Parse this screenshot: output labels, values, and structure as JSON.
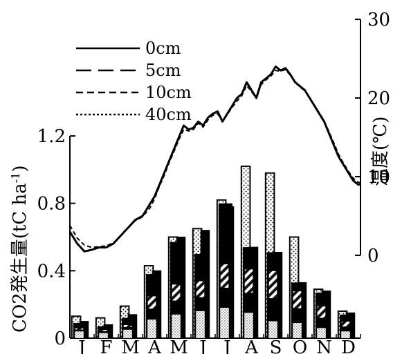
{
  "chart_data": {
    "type": "bar",
    "categories": [
      "J",
      "F",
      "M",
      "A",
      "M",
      "J",
      "J",
      "A",
      "S",
      "O",
      "N",
      "D"
    ],
    "ylabel": "CO2発生量(tC ha-1)",
    "ylabel_main": "CO2発生量(tC ha",
    "ylabel_sup": "-1",
    "ylabel_close": ")",
    "y2label": "温度(℃)",
    "ylim": [
      0,
      1.2
    ],
    "y2lim": [
      0,
      30
    ],
    "yticks": [
      "0",
      "0.4",
      "0.8",
      "1.2"
    ],
    "y2ticks": [
      "0",
      "10",
      "20",
      "30"
    ],
    "bar_series": [
      {
        "name": "left",
        "values": [
          0.13,
          0.12,
          0.19,
          0.43,
          0.6,
          0.65,
          0.82,
          1.02,
          0.98,
          0.6,
          0.29,
          0.16
        ]
      },
      {
        "name": "right",
        "values": [
          0.1,
          0.08,
          0.14,
          0.4,
          0.6,
          0.64,
          0.78,
          0.54,
          0.51,
          0.33,
          0.28,
          0.15
        ]
      }
    ],
    "bar_layers": [
      {
        "name": "left-black-top",
        "values": [
          0.09,
          0.07,
          0.12,
          0.38,
          0.57,
          0.5,
          0.8,
          0.54,
          0.51,
          0.33,
          0.27,
          0.14
        ]
      },
      {
        "name": "hatched",
        "values": [
          0.06,
          0.05,
          0.08,
          0.25,
          0.32,
          0.34,
          0.44,
          0.41,
          0.4,
          0.28,
          0.19,
          0.1
        ]
      },
      {
        "name": "dotted-grey",
        "values": [
          0.04,
          0.03,
          0.05,
          0.11,
          0.14,
          0.16,
          0.18,
          0.15,
          0.1,
          0.09,
          0.06,
          0.04
        ]
      }
    ],
    "legend": [
      "0cm",
      "5cm",
      "10cm",
      "40cm"
    ],
    "legend_styles": [
      "solid",
      "long-dash",
      "short-dash",
      "dotted"
    ],
    "temperature_series": {
      "name": "0cm",
      "x": [
        0,
        0.3,
        0.6,
        0.9,
        1.2,
        1.5,
        1.8,
        2.1,
        2.4,
        2.7,
        3.0,
        3.3,
        3.5,
        3.7,
        3.9,
        4.1,
        4.3,
        4.5,
        4.7,
        4.9,
        5.1,
        5.3,
        5.5,
        5.7,
        5.9,
        6.1,
        6.3,
        6.5,
        6.7,
        6.9,
        7.1,
        7.3,
        7.5,
        7.7,
        7.9,
        8.1,
        8.3,
        8.5,
        8.7,
        8.9,
        9.1,
        9.3,
        9.5,
        9.7,
        9.9,
        10.1,
        10.3,
        10.5,
        10.7,
        10.9,
        11.1,
        11.3,
        11.5,
        11.7,
        11.9,
        12.0
      ],
      "y": [
        3.0,
        1.5,
        0.5,
        0.7,
        1.0,
        1.0,
        1.5,
        2.5,
        3.5,
        4.5,
        5.0,
        6.5,
        7.5,
        9.0,
        10.5,
        12.0,
        13.5,
        15.0,
        16.5,
        16.0,
        16.2,
        17.0,
        16.5,
        17.5,
        18.0,
        18.3,
        17.0,
        18.0,
        19.0,
        20.0,
        20.5,
        22.0,
        21.0,
        20.0,
        22.0,
        22.5,
        23.0,
        24.0,
        23.5,
        23.8,
        23.0,
        22.0,
        21.5,
        21.0,
        20.0,
        19.0,
        18.0,
        17.0,
        15.5,
        14.0,
        12.5,
        11.5,
        10.5,
        9.5,
        9.0,
        9.0
      ]
    },
    "temperature_series_10cm": {
      "name": "10cm",
      "y_offset": [
        3.8,
        2.2,
        1.3,
        1.0,
        1.1,
        1.2,
        1.6,
        2.5,
        3.5,
        4.4,
        4.9,
        6.0,
        7.2,
        8.8,
        10.2,
        11.8,
        13.2,
        14.7,
        16.0,
        15.8,
        16.0,
        16.8,
        16.3,
        17.2,
        17.8,
        18.0,
        17.0,
        17.9,
        18.8,
        19.6,
        20.3,
        21.6,
        20.8,
        20.0,
        21.7,
        22.3,
        22.8,
        23.5,
        23.4,
        23.6,
        22.9,
        22.0,
        21.4,
        20.9,
        20.0,
        19.0,
        18.1,
        17.1,
        15.7,
        14.3,
        12.8,
        11.7,
        10.7,
        9.8,
        9.3,
        9.2
      ]
    }
  }
}
